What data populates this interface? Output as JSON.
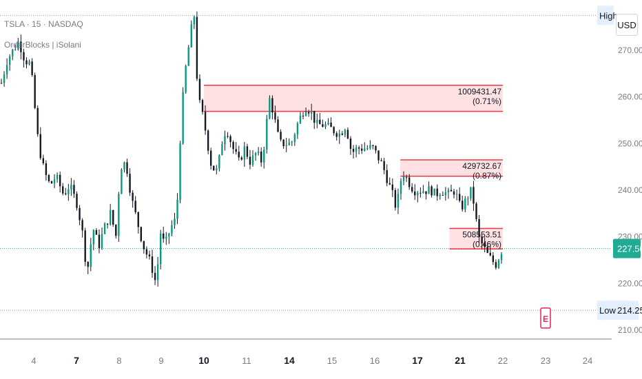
{
  "header": {
    "title": "TSLA · 15 · NASDAQ",
    "indicator": "OrderBlocks | iSolani"
  },
  "toolbar": {
    "currency": "USD"
  },
  "chart_data": {
    "type": "candlestick",
    "symbol": "TSLA",
    "ylim": [
      207,
      279
    ],
    "yticks": [
      210,
      220,
      230,
      240,
      250,
      260,
      270
    ],
    "ytick_labels": [
      "210.00",
      "220.00",
      "230.00",
      "240.00",
      "250.00",
      "260.00",
      "270.00"
    ],
    "x_labels": [
      "4",
      "7",
      "8",
      "9",
      "10",
      "11",
      "14",
      "15",
      "16",
      "17",
      "21",
      "22",
      "23",
      "24"
    ],
    "x_label_bold": [
      "7",
      "10",
      "14",
      "17",
      "21"
    ],
    "high": {
      "label": "High",
      "value": 277.5
    },
    "low": {
      "label": "Low",
      "value": 214.25,
      "value_label": "214.25"
    },
    "last": {
      "value": 227.5,
      "value_label": "227.50"
    },
    "order_blocks": [
      {
        "top": 262.5,
        "bottom": 256.9,
        "x_start": 10.0,
        "x_end": 22.0,
        "volume": "1009431.47",
        "percent": "(0.71%)"
      },
      {
        "top": 246.5,
        "bottom": 243.0,
        "x_start": 16.6,
        "x_end": 22.0,
        "volume": "429732.67",
        "percent": "(0.87%)"
      },
      {
        "top": 231.8,
        "bottom": 227.4,
        "x_start": 20.0,
        "x_end": 22.0,
        "volume": "508553.51",
        "percent": "(0.46%)"
      }
    ],
    "earnings_marker": {
      "label": "E",
      "x": 23.0
    },
    "price_path": [
      [
        3.0,
        263
      ],
      [
        3.15,
        268
      ],
      [
        3.3,
        270
      ],
      [
        3.45,
        272
      ],
      [
        3.6,
        268
      ],
      [
        3.75,
        267
      ],
      [
        3.95,
        250
      ],
      [
        4.1,
        244
      ],
      [
        4.25,
        241
      ],
      [
        4.4,
        243
      ],
      [
        4.6,
        239
      ],
      [
        4.75,
        241
      ],
      [
        4.95,
        237
      ],
      [
        5.1,
        230
      ],
      [
        5.2,
        222
      ],
      [
        5.35,
        232
      ],
      [
        5.5,
        228
      ],
      [
        5.65,
        232
      ],
      [
        5.8,
        235
      ],
      [
        5.95,
        230
      ],
      [
        6.05,
        245
      ],
      [
        6.2,
        246
      ],
      [
        6.35,
        238
      ],
      [
        6.5,
        233
      ],
      [
        6.65,
        228
      ],
      [
        6.85,
        224
      ],
      [
        7.0,
        219
      ],
      [
        7.05,
        232
      ],
      [
        7.2,
        228
      ],
      [
        7.35,
        232
      ],
      [
        7.5,
        234
      ],
      [
        7.6,
        252
      ],
      [
        7.7,
        264
      ],
      [
        7.85,
        273
      ],
      [
        7.95,
        278
      ],
      [
        8.05,
        260
      ],
      [
        8.2,
        255
      ],
      [
        8.4,
        245
      ],
      [
        8.55,
        244
      ],
      [
        8.7,
        252
      ],
      [
        8.8,
        253
      ],
      [
        8.95,
        249
      ],
      [
        9.1,
        246
      ],
      [
        9.25,
        249
      ],
      [
        9.4,
        246
      ],
      [
        9.55,
        248
      ],
      [
        9.7,
        246
      ],
      [
        9.85,
        257
      ],
      [
        9.9,
        260
      ],
      [
        10.0,
        256
      ],
      [
        10.15,
        250
      ],
      [
        10.3,
        250
      ],
      [
        10.45,
        250
      ],
      [
        10.6,
        254
      ],
      [
        10.8,
        258
      ],
      [
        10.95,
        257
      ],
      [
        11.1,
        254
      ],
      [
        11.3,
        254
      ],
      [
        11.5,
        253
      ],
      [
        11.7,
        252
      ],
      [
        11.85,
        254
      ],
      [
        12.0,
        248
      ],
      [
        12.15,
        249
      ],
      [
        12.35,
        249
      ],
      [
        12.55,
        249
      ],
      [
        12.75,
        246
      ],
      [
        12.85,
        244
      ],
      [
        13.05,
        239
      ],
      [
        13.15,
        236
      ],
      [
        13.3,
        244
      ],
      [
        13.45,
        242
      ],
      [
        13.6,
        240
      ],
      [
        13.75,
        240
      ],
      [
        13.95,
        240
      ],
      [
        14.05,
        240
      ],
      [
        14.15,
        239
      ],
      [
        14.3,
        240
      ],
      [
        14.5,
        239
      ],
      [
        14.65,
        240
      ],
      [
        14.8,
        236
      ],
      [
        14.95,
        238
      ],
      [
        15.05,
        240
      ],
      [
        15.15,
        237
      ],
      [
        15.25,
        230
      ],
      [
        15.5,
        226
      ],
      [
        15.7,
        224
      ],
      [
        15.85,
        227
      ]
    ]
  }
}
